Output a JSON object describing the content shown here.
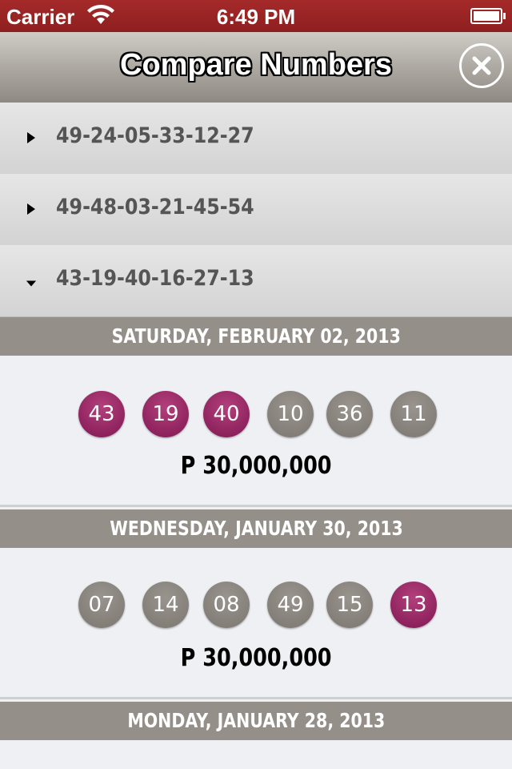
{
  "status_bar": {
    "carrier": "Carrier",
    "time": "6:49 PM"
  },
  "nav": {
    "title": "Compare Numbers",
    "close_icon": "close-icon"
  },
  "combinations": [
    {
      "numbers": "49-24-05-33-12-27",
      "expanded": false
    },
    {
      "numbers": "49-48-03-21-45-54",
      "expanded": false
    },
    {
      "numbers": "43-19-40-16-27-13",
      "expanded": true
    }
  ],
  "draws": [
    {
      "date": "SATURDAY, FEBRUARY 02, 2013",
      "balls": [
        {
          "n": "43",
          "match": true
        },
        {
          "n": "19",
          "match": true
        },
        {
          "n": "40",
          "match": true
        },
        {
          "n": "10",
          "match": false
        },
        {
          "n": "36",
          "match": false
        },
        {
          "n": "11",
          "match": false
        }
      ],
      "prize": "P 30,000,000"
    },
    {
      "date": "WEDNESDAY, JANUARY 30, 2013",
      "balls": [
        {
          "n": "07",
          "match": false
        },
        {
          "n": "14",
          "match": false
        },
        {
          "n": "08",
          "match": false
        },
        {
          "n": "49",
          "match": false
        },
        {
          "n": "15",
          "match": false
        },
        {
          "n": "13",
          "match": true
        }
      ],
      "prize": "P 30,000,000"
    },
    {
      "date": "MONDAY, JANUARY 28, 2013"
    }
  ],
  "colors": {
    "match": "#9b2a67",
    "no_match": "#8a847e",
    "status_bar": "#9b2525",
    "date_header": "#958f89"
  }
}
